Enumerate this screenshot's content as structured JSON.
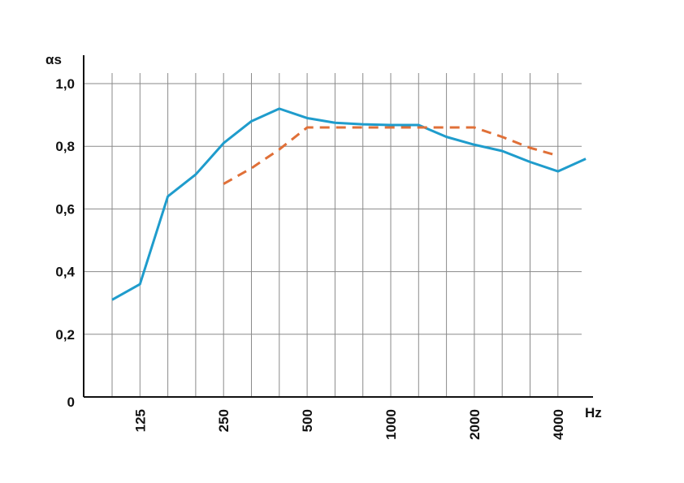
{
  "chart_data": {
    "type": "line",
    "title": "",
    "xlabel": "Hz",
    "ylabel": "αs",
    "x_scale": "log",
    "xlim": [
      100,
      5000
    ],
    "ylim": [
      0,
      1.0
    ],
    "grid": true,
    "legend": "none",
    "x_tick_labels": [
      "125",
      "250",
      "500",
      "1000",
      "2000",
      "4000"
    ],
    "y_ticks": [
      {
        "value": 0,
        "label": "0"
      },
      {
        "value": 0.2,
        "label": "0,2"
      },
      {
        "value": 0.4,
        "label": "0,4"
      },
      {
        "value": 0.6,
        "label": "0,6"
      },
      {
        "value": 0.8,
        "label": "0,8"
      },
      {
        "value": 1.0,
        "label": "1,0"
      }
    ],
    "x": [
      100,
      125,
      160,
      200,
      250,
      315,
      400,
      500,
      630,
      800,
      1000,
      1250,
      1600,
      2000,
      2500,
      3150,
      4000,
      5000
    ],
    "series": [
      {
        "color": "#1f9ccc",
        "style": "solid",
        "values": [
          0.31,
          0.36,
          0.64,
          0.71,
          0.81,
          0.88,
          0.92,
          0.89,
          0.875,
          0.87,
          0.868,
          0.868,
          0.83,
          0.805,
          0.785,
          0.75,
          0.72,
          0.76
        ]
      },
      {
        "color": "#e07038",
        "style": "dashed",
        "values": [
          null,
          null,
          null,
          null,
          0.68,
          0.73,
          0.79,
          0.86,
          0.86,
          0.86,
          0.86,
          0.86,
          0.86,
          0.86,
          0.83,
          0.795,
          0.77,
          null
        ]
      }
    ]
  }
}
